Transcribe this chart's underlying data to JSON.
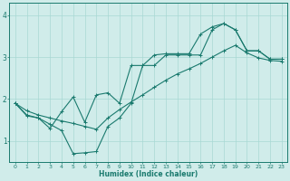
{
  "xlabel": "Humidex (Indice chaleur)",
  "line_color": "#1a7a6e",
  "background_color": "#d0ecea",
  "grid_color": "#a8d8d4",
  "xlim": [
    -0.5,
    23.5
  ],
  "ylim": [
    0.5,
    4.3
  ],
  "yticks": [
    1,
    2,
    3,
    4
  ],
  "xticks": [
    0,
    1,
    2,
    3,
    4,
    5,
    6,
    7,
    8,
    9,
    10,
    11,
    12,
    13,
    14,
    15,
    16,
    17,
    18,
    19,
    20,
    21,
    22,
    23
  ],
  "line1_x": [
    0,
    1,
    2,
    3,
    4,
    5,
    6,
    7,
    8,
    9,
    10,
    11,
    12,
    13,
    14,
    15,
    16,
    17,
    18,
    19,
    20,
    21,
    22,
    23
  ],
  "line1_y": [
    1.9,
    1.6,
    1.55,
    1.4,
    1.25,
    0.7,
    0.72,
    0.75,
    1.35,
    1.55,
    1.9,
    2.8,
    2.8,
    3.05,
    3.05,
    3.05,
    3.05,
    3.65,
    3.8,
    3.65,
    3.15,
    3.15,
    2.95,
    2.95
  ],
  "line2_x": [
    0,
    1,
    2,
    3,
    4,
    5,
    6,
    7,
    8,
    9,
    10,
    11,
    12,
    13,
    14,
    15,
    16,
    17,
    18,
    19,
    20,
    21,
    22,
    23
  ],
  "line2_y": [
    1.9,
    1.62,
    1.55,
    1.3,
    1.7,
    2.05,
    1.45,
    2.1,
    2.15,
    1.9,
    2.8,
    2.8,
    3.05,
    3.08,
    3.08,
    3.08,
    3.55,
    3.72,
    3.8,
    3.65,
    3.15,
    3.15,
    2.95,
    2.95
  ],
  "line3_x": [
    0,
    1,
    2,
    3,
    4,
    5,
    6,
    7,
    8,
    9,
    10,
    11,
    12,
    13,
    14,
    15,
    16,
    17,
    18,
    19,
    20,
    21,
    22,
    23
  ],
  "line3_y": [
    1.9,
    1.72,
    1.62,
    1.55,
    1.48,
    1.42,
    1.35,
    1.28,
    1.55,
    1.75,
    1.93,
    2.1,
    2.28,
    2.45,
    2.6,
    2.72,
    2.85,
    3.0,
    3.15,
    3.28,
    3.1,
    2.98,
    2.92,
    2.9
  ]
}
